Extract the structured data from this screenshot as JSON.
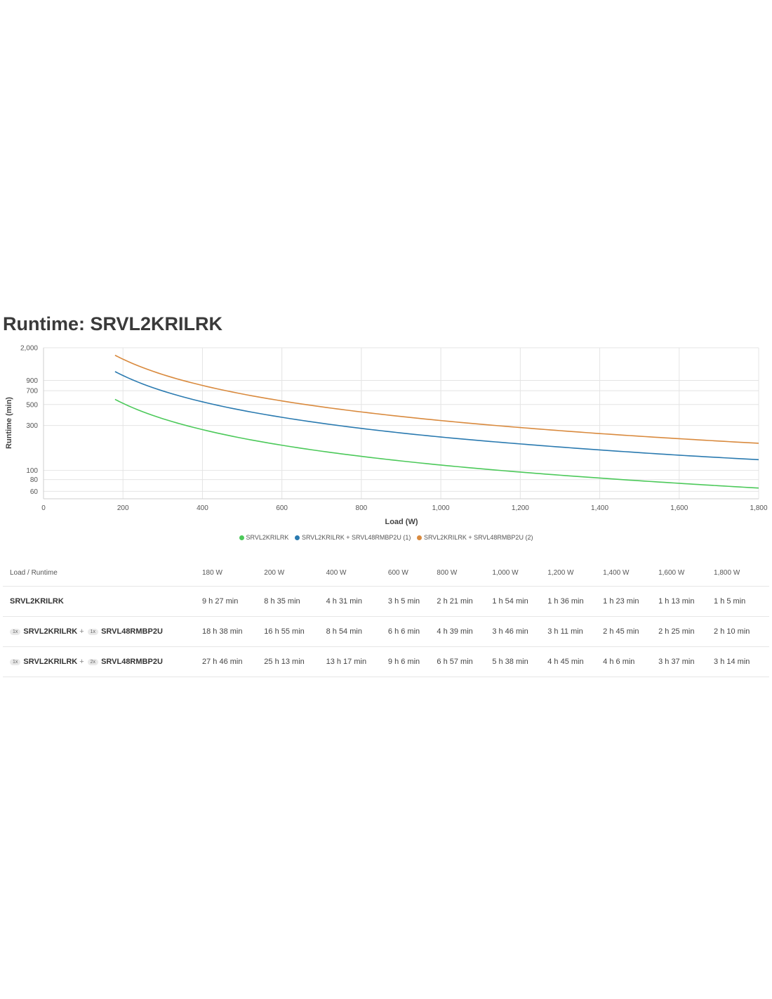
{
  "page": {
    "title": "Runtime: SRVL2KRILRK"
  },
  "chart_data": {
    "type": "line",
    "title": "Runtime: SRVL2KRILRK",
    "xlabel": "Load (W)",
    "ylabel": "Runtime (min)",
    "xlim": [
      0,
      1800
    ],
    "ylim": [
      50,
      2000
    ],
    "yscale": "log",
    "x_ticks": [
      "0",
      "200",
      "400",
      "600",
      "800",
      "1,000",
      "1,200",
      "1,400",
      "1,600",
      "1,800"
    ],
    "x_tick_values": [
      0,
      200,
      400,
      600,
      800,
      1000,
      1200,
      1400,
      1600,
      1800
    ],
    "y_ticks": [
      "60",
      "80",
      "100",
      "300",
      "500",
      "700",
      "900",
      "2,000"
    ],
    "y_tick_values": [
      60,
      80,
      100,
      300,
      500,
      700,
      900,
      2000
    ],
    "grid": true,
    "legend_position": "bottom",
    "x": [
      180,
      200,
      400,
      600,
      800,
      1000,
      1200,
      1400,
      1600,
      1800
    ],
    "series": [
      {
        "name": "SRVL2KRILRK",
        "color": "#4cc95a",
        "values": [
          567,
          515,
          271,
          185,
          141,
          114,
          96,
          83,
          73,
          65
        ]
      },
      {
        "name": "SRVL2KRILRK + SRVL48RMBP2U (1)",
        "color": "#2a7ab0",
        "values": [
          1118,
          1015,
          534,
          366,
          279,
          226,
          191,
          165,
          145,
          130
        ]
      },
      {
        "name": "SRVL2KRILRK + SRVL48RMBP2U (2)",
        "color": "#d98a3e",
        "values": [
          1666,
          1513,
          797,
          546,
          417,
          338,
          285,
          246,
          217,
          194
        ]
      }
    ]
  },
  "table": {
    "header_label": "Load / Runtime",
    "columns": [
      "180 W",
      "200 W",
      "400 W",
      "600 W",
      "800 W",
      "1,000 W",
      "1,200 W",
      "1,400 W",
      "1,600 W",
      "1,800 W"
    ],
    "rows": [
      {
        "name": "SRVL2KRILRK",
        "values": [
          "9 h 27 min",
          "8 h 35 min",
          "4 h 31 min",
          "3 h 5 min",
          "2 h 21 min",
          "1 h 54 min",
          "1 h 36 min",
          "1 h 23 min",
          "1 h 13 min",
          "1 h 5 min"
        ]
      },
      {
        "qty1": "1x",
        "name1": "SRVL2KRILRK",
        "plus": "+",
        "qty2": "1x",
        "name2": "SRVL48RMBP2U",
        "values": [
          "18 h 38 min",
          "16 h 55 min",
          "8 h 54 min",
          "6 h 6 min",
          "4 h 39 min",
          "3 h 46 min",
          "3 h 11 min",
          "2 h 45 min",
          "2 h 25 min",
          "2 h 10 min"
        ]
      },
      {
        "qty1": "1x",
        "name1": "SRVL2KRILRK",
        "plus": "+",
        "qty2": "2x",
        "name2": "SRVL48RMBP2U",
        "values": [
          "27 h 46 min",
          "25 h 13 min",
          "13 h 17 min",
          "9 h 6 min",
          "6 h 57 min",
          "5 h 38 min",
          "4 h 45 min",
          "4 h 6 min",
          "3 h 37 min",
          "3 h 14 min"
        ]
      }
    ]
  }
}
